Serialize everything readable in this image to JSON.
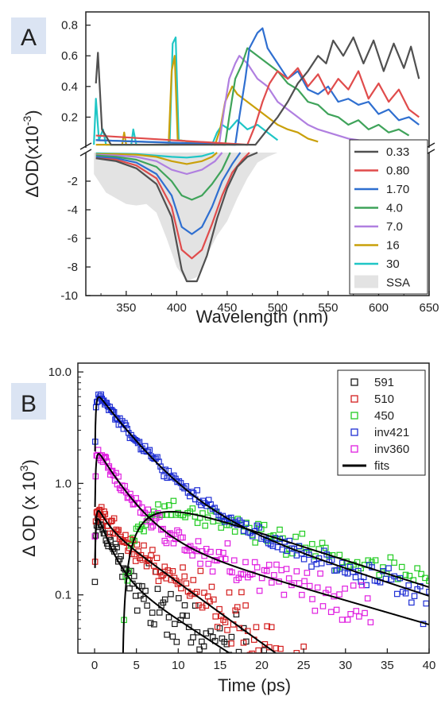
{
  "chart_data": [
    {
      "panel_label": "A",
      "type": "line",
      "xlabel": "Wavelength (nm)",
      "ylabel_main": "ΔOD(x10",
      "ylabel_sup": "-3",
      "ylabel_close": ")",
      "xlim": [
        310,
        650
      ],
      "ylim_lower": [
        -10,
        0
      ],
      "ylim_upper": [
        0,
        0.85
      ],
      "xticks": [
        "350",
        "400",
        "450",
        "500",
        "550",
        "600",
        "650"
      ],
      "yticks_lower": [
        "-2",
        "-4",
        "-6",
        "-8",
        "-10"
      ],
      "yticks_upper": [
        "0.2",
        "0.4",
        "0.6",
        "0.8"
      ],
      "legend_position": "bottom-right",
      "colors": {
        "0.33": "#505050",
        "0.80": "#e04c4c",
        "1.70": "#2f6fd0",
        "4.0": "#3fa35a",
        "7.0": "#b07fe0",
        "16": "#c9a00a",
        "30": "#1fc6c6",
        "SSA": "#e3e3e3"
      },
      "series": [
        {
          "name": "0.33",
          "negative": [
            [
              320,
              -0.4
            ],
            [
              340,
              -0.6
            ],
            [
              360,
              -1.1
            ],
            [
              380,
              -2.2
            ],
            [
              395,
              -4.5
            ],
            [
              405,
              -8.2
            ],
            [
              410,
              -9.0
            ],
            [
              420,
              -9.0
            ],
            [
              430,
              -7.2
            ],
            [
              440,
              -4.6
            ],
            [
              450,
              -2.5
            ],
            [
              460,
              -1.0
            ],
            [
              470,
              -0.3
            ],
            [
              480,
              0
            ]
          ],
          "positive": [
            [
              320,
              0.42
            ],
            [
              322,
              0.62
            ],
            [
              326,
              0.12
            ],
            [
              335,
              0.02
            ],
            [
              478,
              0.02
            ],
            [
              490,
              0.12
            ],
            [
              500,
              0.2
            ],
            [
              510,
              0.3
            ],
            [
              520,
              0.42
            ],
            [
              530,
              0.5
            ],
            [
              540,
              0.6
            ],
            [
              548,
              0.55
            ],
            [
              555,
              0.7
            ],
            [
              565,
              0.6
            ],
            [
              575,
              0.72
            ],
            [
              585,
              0.55
            ],
            [
              595,
              0.7
            ],
            [
              605,
              0.5
            ],
            [
              615,
              0.68
            ],
            [
              625,
              0.52
            ],
            [
              632,
              0.66
            ],
            [
              640,
              0.45
            ]
          ]
        },
        {
          "name": "0.80",
          "negative": [
            [
              320,
              -0.4
            ],
            [
              340,
              -0.5
            ],
            [
              360,
              -0.9
            ],
            [
              380,
              -1.8
            ],
            [
              395,
              -3.8
            ],
            [
              405,
              -6.8
            ],
            [
              415,
              -7.4
            ],
            [
              425,
              -6.8
            ],
            [
              435,
              -5.0
            ],
            [
              445,
              -3.0
            ],
            [
              455,
              -1.4
            ],
            [
              465,
              -0.5
            ],
            [
              472,
              0
            ]
          ],
          "positive": [
            [
              320,
              0.08
            ],
            [
              470,
              0.02
            ],
            [
              478,
              0.15
            ],
            [
              485,
              0.3
            ],
            [
              492,
              0.42
            ],
            [
              500,
              0.5
            ],
            [
              510,
              0.45
            ],
            [
              520,
              0.52
            ],
            [
              530,
              0.4
            ],
            [
              540,
              0.48
            ],
            [
              550,
              0.35
            ],
            [
              560,
              0.45
            ],
            [
              570,
              0.38
            ],
            [
              580,
              0.5
            ],
            [
              590,
              0.32
            ],
            [
              600,
              0.42
            ],
            [
              610,
              0.3
            ],
            [
              620,
              0.38
            ],
            [
              630,
              0.25
            ],
            [
              640,
              0.2
            ]
          ]
        },
        {
          "name": "1.70",
          "negative": [
            [
              320,
              -0.3
            ],
            [
              340,
              -0.4
            ],
            [
              360,
              -0.7
            ],
            [
              380,
              -1.5
            ],
            [
              395,
              -3.0
            ],
            [
              405,
              -5.2
            ],
            [
              415,
              -5.7
            ],
            [
              425,
              -5.2
            ],
            [
              435,
              -3.8
            ],
            [
              445,
              -2.0
            ],
            [
              455,
              -0.8
            ],
            [
              463,
              0
            ]
          ],
          "positive": [
            [
              320,
              0.05
            ],
            [
              458,
              0.02
            ],
            [
              462,
              0.2
            ],
            [
              468,
              0.45
            ],
            [
              472,
              0.65
            ],
            [
              480,
              0.75
            ],
            [
              485,
              0.78
            ],
            [
              490,
              0.65
            ],
            [
              500,
              0.55
            ],
            [
              510,
              0.45
            ],
            [
              520,
              0.5
            ],
            [
              530,
              0.38
            ],
            [
              540,
              0.35
            ],
            [
              550,
              0.4
            ],
            [
              560,
              0.3
            ],
            [
              570,
              0.32
            ],
            [
              580,
              0.28
            ],
            [
              590,
              0.3
            ],
            [
              600,
              0.22
            ],
            [
              610,
              0.25
            ],
            [
              620,
              0.18
            ],
            [
              630,
              0.2
            ],
            [
              640,
              0.15
            ]
          ]
        },
        {
          "name": "4.0",
          "negative": [
            [
              320,
              -0.2
            ],
            [
              340,
              -0.3
            ],
            [
              360,
              -0.5
            ],
            [
              380,
              -1.0
            ],
            [
              395,
              -2.0
            ],
            [
              405,
              -3.0
            ],
            [
              415,
              -3.3
            ],
            [
              425,
              -3.0
            ],
            [
              435,
              -2.2
            ],
            [
              445,
              -1.2
            ],
            [
              453,
              0
            ]
          ],
          "positive": [
            [
              320,
              0.05
            ],
            [
              448,
              0.02
            ],
            [
              452,
              0.2
            ],
            [
              458,
              0.45
            ],
            [
              465,
              0.55
            ],
            [
              470,
              0.65
            ],
            [
              480,
              0.6
            ],
            [
              490,
              0.55
            ],
            [
              500,
              0.5
            ],
            [
              510,
              0.42
            ],
            [
              520,
              0.38
            ],
            [
              530,
              0.3
            ],
            [
              540,
              0.28
            ],
            [
              550,
              0.22
            ],
            [
              560,
              0.2
            ],
            [
              570,
              0.15
            ],
            [
              580,
              0.18
            ],
            [
              590,
              0.12
            ],
            [
              600,
              0.15
            ],
            [
              610,
              0.1
            ],
            [
              620,
              0.12
            ],
            [
              630,
              0.08
            ]
          ]
        },
        {
          "name": "7.0",
          "negative": [
            [
              320,
              -0.15
            ],
            [
              340,
              -0.2
            ],
            [
              360,
              -0.3
            ],
            [
              380,
              -0.6
            ],
            [
              395,
              -1.2
            ],
            [
              410,
              -1.5
            ],
            [
              425,
              -1.2
            ],
            [
              438,
              -0.6
            ],
            [
              445,
              0
            ]
          ],
          "positive": [
            [
              320,
              0.05
            ],
            [
              442,
              0.02
            ],
            [
              447,
              0.25
            ],
            [
              452,
              0.45
            ],
            [
              458,
              0.55
            ],
            [
              462,
              0.6
            ],
            [
              470,
              0.55
            ],
            [
              480,
              0.45
            ],
            [
              490,
              0.4
            ],
            [
              500,
              0.3
            ],
            [
              510,
              0.25
            ],
            [
              520,
              0.2
            ],
            [
              530,
              0.15
            ],
            [
              540,
              0.12
            ],
            [
              550,
              0.1
            ],
            [
              560,
              0.08
            ],
            [
              570,
              0.06
            ],
            [
              580,
              0.05
            ],
            [
              590,
              0.04
            ]
          ]
        },
        {
          "name": "16",
          "negative": [
            [
              320,
              -0.1
            ],
            [
              340,
              -0.1
            ],
            [
              360,
              -0.15
            ],
            [
              380,
              -0.3
            ],
            [
              395,
              -0.6
            ],
            [
              410,
              -0.8
            ],
            [
              425,
              -0.6
            ],
            [
              435,
              -0.3
            ],
            [
              440,
              0
            ]
          ],
          "positive": [
            [
              320,
              0.02
            ],
            [
              346,
              0.02
            ],
            [
              348,
              0.1
            ],
            [
              350,
              0.02
            ],
            [
              392,
              0.02
            ],
            [
              395,
              0.5
            ],
            [
              398,
              0.6
            ],
            [
              401,
              0.05
            ],
            [
              438,
              0.02
            ],
            [
              443,
              0.12
            ],
            [
              448,
              0.3
            ],
            [
              455,
              0.4
            ],
            [
              460,
              0.35
            ],
            [
              470,
              0.3
            ],
            [
              480,
              0.25
            ],
            [
              490,
              0.2
            ],
            [
              500,
              0.15
            ],
            [
              510,
              0.12
            ],
            [
              520,
              0.1
            ],
            [
              530,
              0.06
            ],
            [
              540,
              0.04
            ]
          ]
        },
        {
          "name": "30",
          "negative": [
            [
              320,
              -0.05
            ],
            [
              360,
              -0.1
            ],
            [
              395,
              -0.3
            ],
            [
              410,
              -0.35
            ],
            [
              425,
              -0.25
            ],
            [
              437,
              0
            ]
          ],
          "positive": [
            [
              318,
              0.02
            ],
            [
              320,
              0.32
            ],
            [
              323,
              0.05
            ],
            [
              327,
              0.12
            ],
            [
              330,
              0.02
            ],
            [
              355,
              0.02
            ],
            [
              357,
              0.12
            ],
            [
              360,
              0.02
            ],
            [
              393,
              0.02
            ],
            [
              396,
              0.68
            ],
            [
              399,
              0.72
            ],
            [
              402,
              0.05
            ],
            [
              435,
              0.02
            ],
            [
              440,
              0.1
            ],
            [
              445,
              0.15
            ],
            [
              452,
              0.12
            ],
            [
              460,
              0.18
            ],
            [
              470,
              0.12
            ],
            [
              480,
              0.15
            ],
            [
              490,
              0.1
            ],
            [
              500,
              0.05
            ]
          ]
        }
      ],
      "ssa": [
        [
          318,
          -1.5
        ],
        [
          330,
          -2.8
        ],
        [
          340,
          -3.2
        ],
        [
          350,
          -3.6
        ],
        [
          360,
          -3.7
        ],
        [
          370,
          -3.6
        ],
        [
          380,
          -4.2
        ],
        [
          390,
          -6.0
        ],
        [
          400,
          -8.0
        ],
        [
          410,
          -9.0
        ],
        [
          420,
          -8.7
        ],
        [
          430,
          -7.2
        ],
        [
          440,
          -5.8
        ],
        [
          450,
          -4.8
        ],
        [
          460,
          -3.2
        ],
        [
          470,
          -1.8
        ],
        [
          480,
          -0.7
        ],
        [
          490,
          -0.3
        ],
        [
          500,
          0
        ]
      ]
    },
    {
      "panel_label": "B",
      "type": "scatter",
      "xlabel": "Time (ps)",
      "ylabel_main": "Δ OD (x 10",
      "ylabel_sup": "3",
      "ylabel_close": ")",
      "xlim": [
        -2,
        40
      ],
      "ylim": [
        0.03,
        12
      ],
      "yscale": "log",
      "xticks": [
        "0",
        "5",
        "10",
        "15",
        "20",
        "25",
        "30",
        "35",
        "40"
      ],
      "yticks": [
        "10.0",
        "1.0",
        "0.1"
      ],
      "legend_position": "top-right",
      "colors": {
        "591": "#1a1a1a",
        "510": "#d42020",
        "450": "#22cc22",
        "inv421": "#1f2fd4",
        "inv360": "#e020e0",
        "fits": "#000000"
      },
      "series": [
        {
          "name": "591",
          "model": "exp",
          "A1": 0.45,
          "t1": 1.5,
          "A2": 0.18,
          "t2": 9,
          "rise": 0.15,
          "t0": 0,
          "n": 170,
          "xmax": 38
        },
        {
          "name": "510",
          "model": "exp",
          "A1": 0.25,
          "t1": 1.2,
          "A2": 0.45,
          "t2": 8,
          "rise": 0.15,
          "t0": 0,
          "n": 160,
          "xmax": 25
        },
        {
          "name": "450",
          "model": "rise",
          "A": 0.9,
          "tr": 3.0,
          "td": 18,
          "t0": 3.3,
          "n": 150,
          "xmax": 40
        },
        {
          "name": "inv421",
          "model": "exp",
          "A1": 6.0,
          "t1": 4.0,
          "A2": 0.9,
          "t2": 18,
          "rise": 0.15,
          "t0": 0,
          "n": 200,
          "xmax": 40
        },
        {
          "name": "inv360",
          "model": "exp",
          "A1": 1.8,
          "t1": 3.0,
          "A2": 0.4,
          "t2": 20,
          "rise": 0.15,
          "t0": 0,
          "n": 170,
          "xmax": 33
        }
      ],
      "legend_entries": [
        "591",
        "510",
        "450",
        "inv421",
        "inv360",
        "fits"
      ]
    }
  ]
}
